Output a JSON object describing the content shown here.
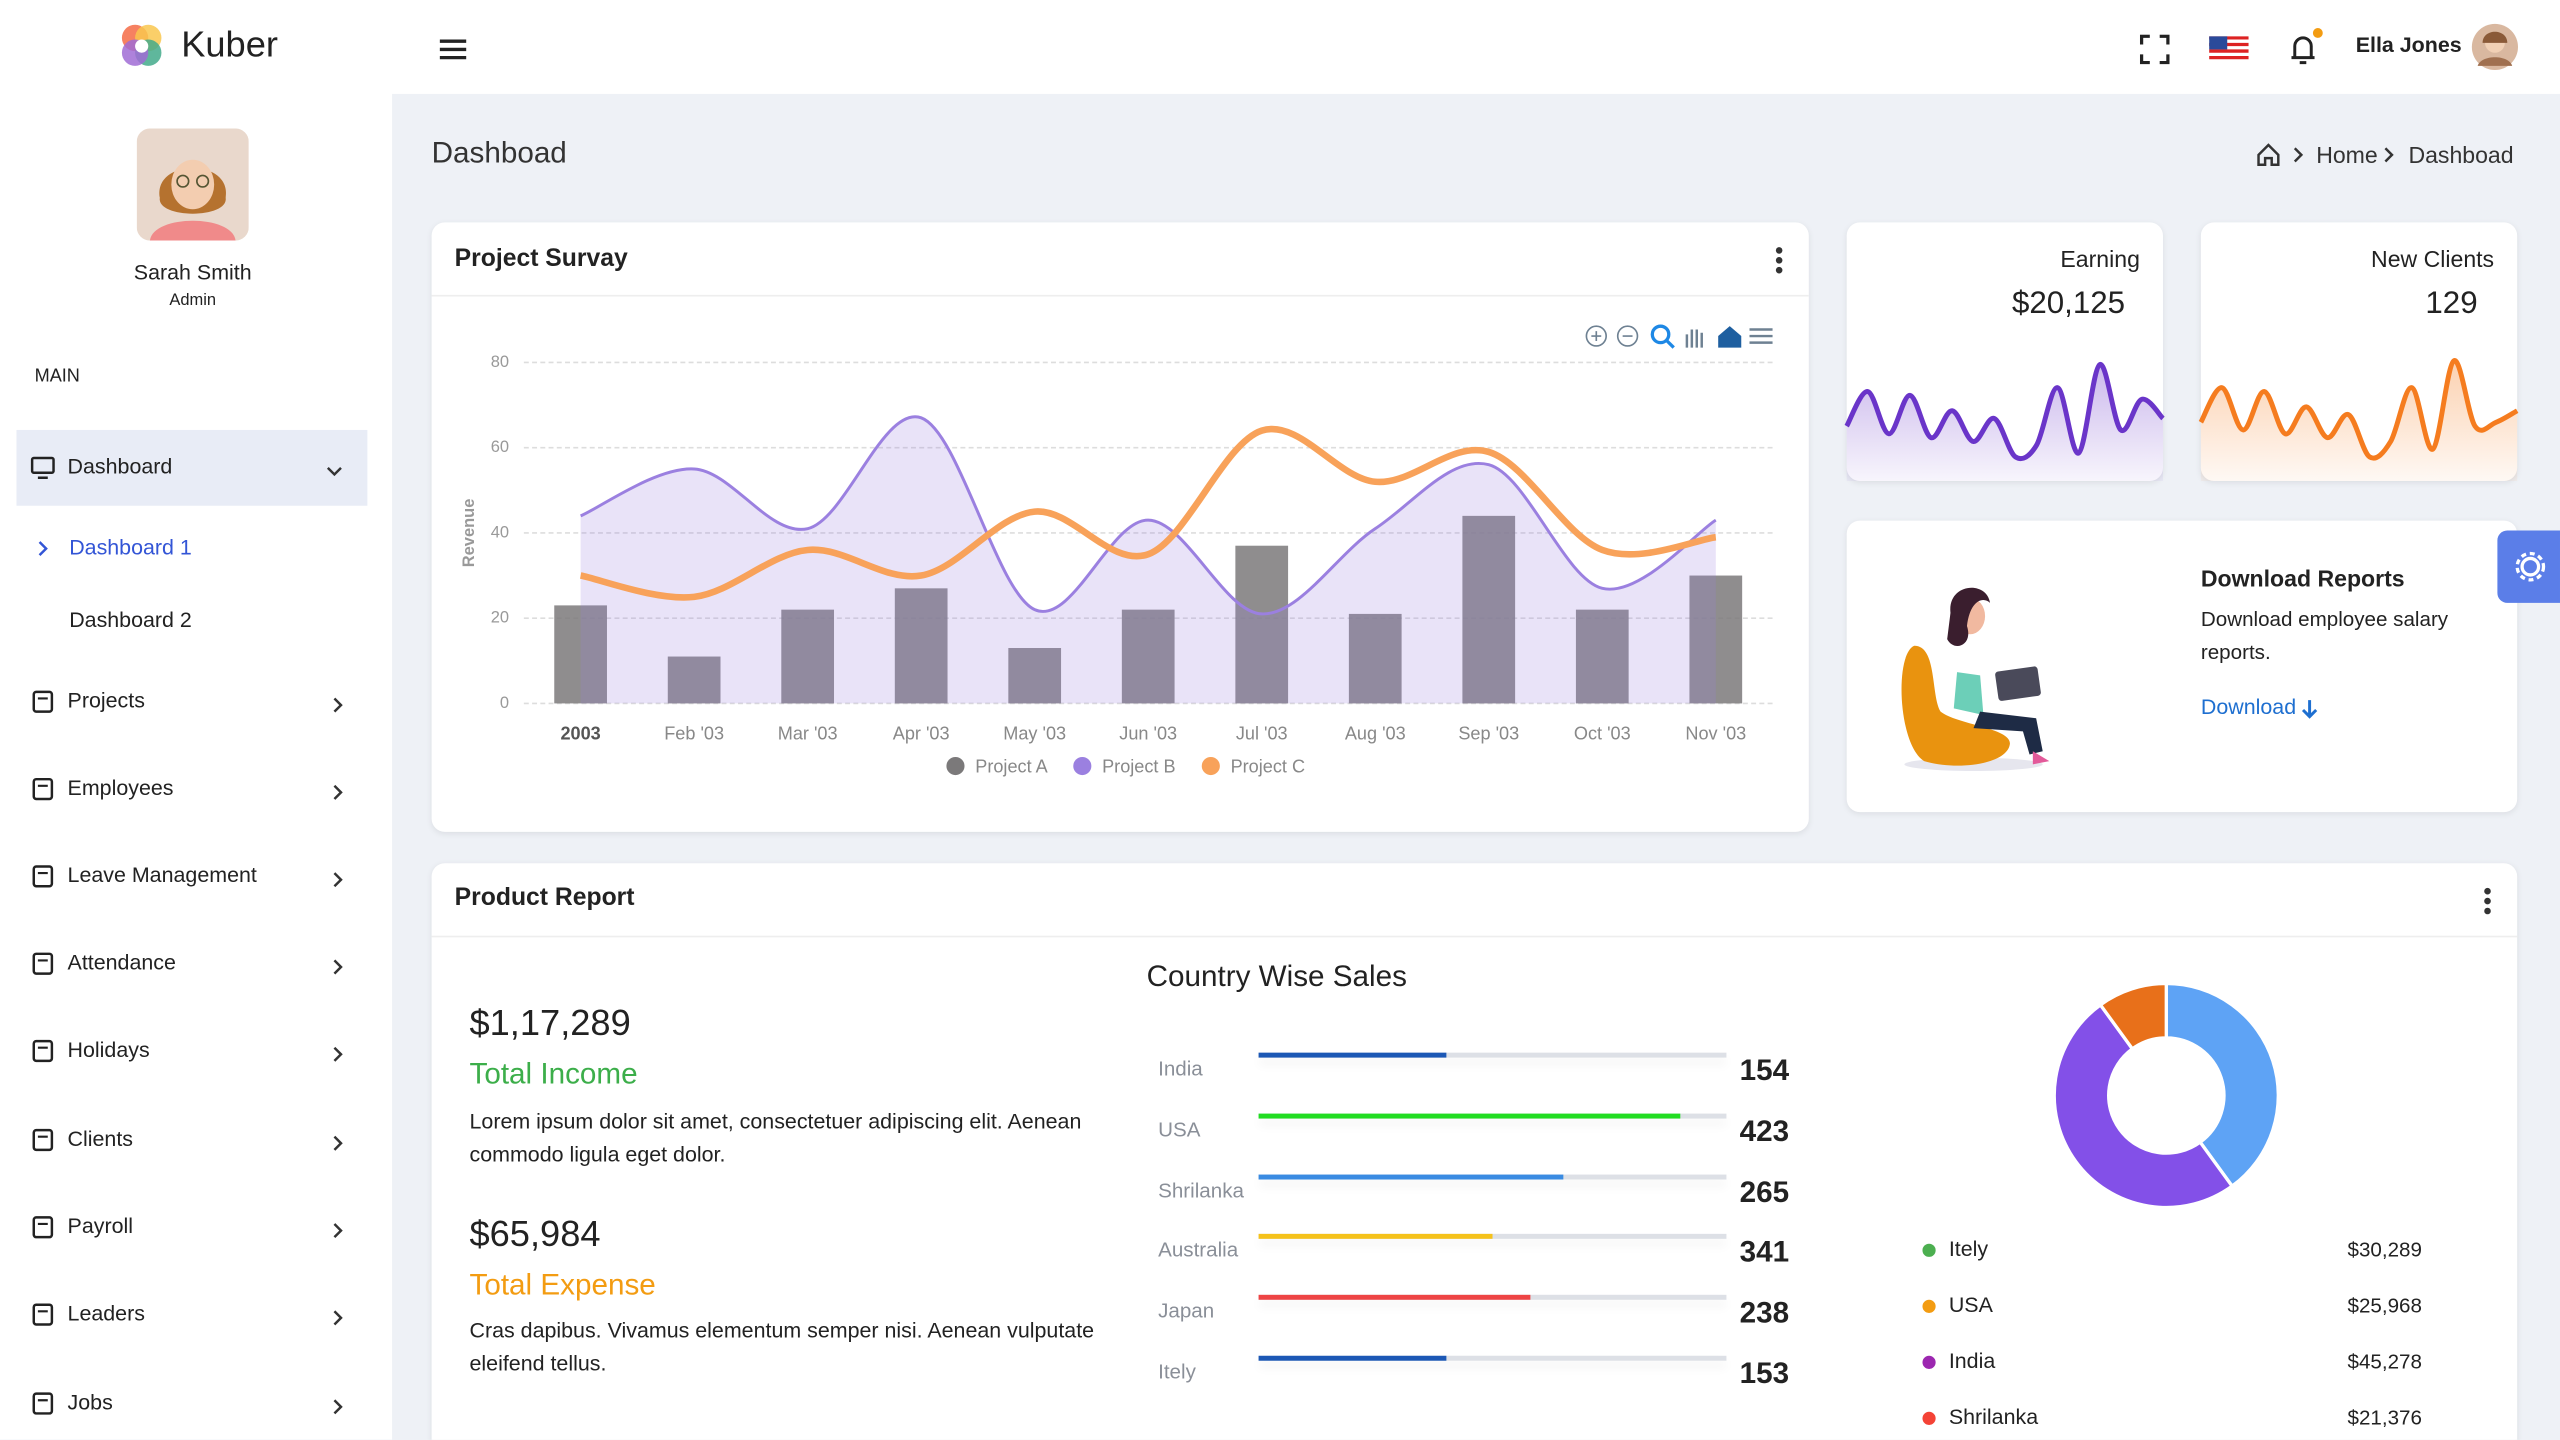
{
  "header": {
    "brand": "Kuber",
    "user": "Ella Jones"
  },
  "sidebar": {
    "user": {
      "name": "Sarah Smith",
      "role": "Admin"
    },
    "section": "MAIN",
    "menu": [
      {
        "label": "Dashboard",
        "children": [
          "Dashboard 1",
          "Dashboard 2"
        ]
      },
      {
        "label": "Projects"
      },
      {
        "label": "Employees"
      },
      {
        "label": "Leave Management"
      },
      {
        "label": "Attendance"
      },
      {
        "label": "Holidays"
      },
      {
        "label": "Clients"
      },
      {
        "label": "Payroll"
      },
      {
        "label": "Leaders"
      },
      {
        "label": "Jobs"
      }
    ]
  },
  "page": {
    "title": "Dashboad",
    "breadcrumb": [
      "Home",
      "Dashboad"
    ]
  },
  "project_survey": {
    "title": "Project Survay"
  },
  "stat_cards": [
    {
      "title": "Earning",
      "value": "$20,125"
    },
    {
      "title": "New Clients",
      "value": 129
    }
  ],
  "download": {
    "title": "Download Reports",
    "text": "Download employee salary reports.",
    "link": "Download"
  },
  "product_report": {
    "title": "Product Report",
    "income": {
      "amount": "$1,17,289",
      "label": "Total Income",
      "text": "Lorem ipsum dolor sit amet, consectetuer adipiscing elit. Aenean commodo ligula eget dolor."
    },
    "expense": {
      "amount": "$65,984",
      "label": "Total Expense",
      "text": "Cras dapibus. Vivamus elementum semper nisi. Aenean vulputate eleifend tellus."
    },
    "country_sales": {
      "title": "Country Wise Sales",
      "rows": [
        {
          "country": "India",
          "value": 154,
          "progress": 40,
          "color": "#1c58b5"
        },
        {
          "country": "USA",
          "value": 423,
          "progress": 90,
          "color": "#22dd22"
        },
        {
          "country": "Shrilanka",
          "value": 265,
          "progress": 65,
          "color": "#3a8be2"
        },
        {
          "country": "Australia",
          "value": 341,
          "progress": 50,
          "color": "#f5c21b"
        },
        {
          "country": "Japan",
          "value": 238,
          "progress": 58,
          "color": "#ee4444"
        },
        {
          "country": "Itely",
          "value": 153,
          "progress": 40,
          "color": "#1c58b5"
        }
      ]
    },
    "sales_legend": [
      {
        "name": "Itely",
        "amount": "$30,289",
        "color": "#4caf50"
      },
      {
        "name": "USA",
        "amount": "$25,968",
        "color": "#f39c12"
      },
      {
        "name": "India",
        "amount": "$45,278",
        "color": "#9c27b0"
      },
      {
        "name": "Shrilanka",
        "amount": "$21,376",
        "color": "#f44336"
      }
    ]
  },
  "chart_data": [
    {
      "type": "combo",
      "y_label": "Revenue",
      "categories": [
        "2003",
        "Feb '03",
        "Mar '03",
        "Apr '03",
        "May '03",
        "Jun '03",
        "Jul '03",
        "Aug '03",
        "Sep '03",
        "Oct '03",
        "Nov '03"
      ],
      "series": [
        {
          "name": "Project A",
          "type": "bar",
          "color": "#7b797a",
          "values": [
            23,
            11,
            22,
            27,
            13,
            22,
            37,
            21,
            44,
            22,
            30
          ]
        },
        {
          "name": "Project B",
          "type": "area",
          "color": "#9b80e0",
          "values": [
            44,
            55,
            41,
            67,
            22,
            43,
            21,
            41,
            56,
            27,
            43
          ]
        },
        {
          "name": "Project C",
          "type": "line",
          "color": "#f8a25a",
          "values": [
            30,
            25,
            36,
            30,
            45,
            35,
            64,
            52,
            59,
            36,
            39
          ]
        }
      ],
      "ylim": [
        0,
        80
      ],
      "yticks": [
        0,
        20,
        40,
        60,
        80
      ],
      "grid": true
    },
    {
      "type": "area",
      "color": "#6a35c9",
      "values": [
        20,
        38,
        16,
        36,
        14,
        28,
        12,
        24,
        4,
        10,
        40,
        6,
        52,
        18,
        34,
        24
      ],
      "ylim": [
        0,
        60
      ]
    },
    {
      "type": "area",
      "color": "#f57c1f",
      "values": [
        22,
        40,
        18,
        38,
        16,
        30,
        14,
        26,
        4,
        12,
        40,
        8,
        54,
        20,
        22,
        28
      ],
      "ylim": [
        0,
        60
      ]
    },
    {
      "type": "pie",
      "donut": true,
      "values": [
        40,
        50,
        10
      ],
      "colors": [
        "#5ea3f5",
        "#8350e8",
        "#e8701a"
      ]
    }
  ]
}
